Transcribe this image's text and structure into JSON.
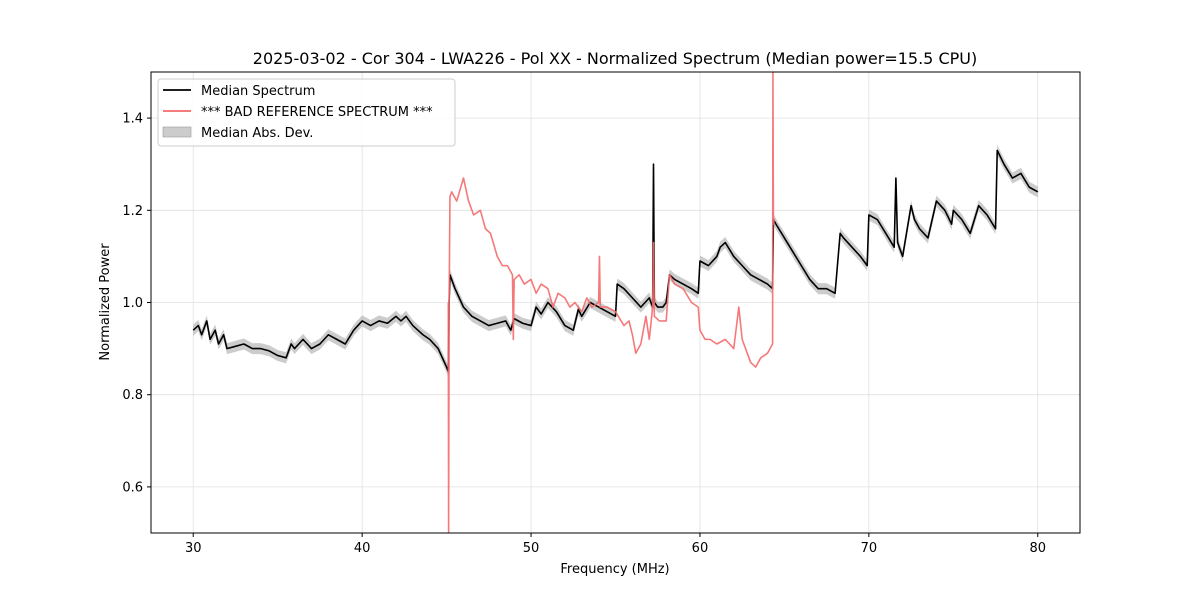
{
  "chart_data": {
    "type": "line",
    "title": "2025-03-02 - Cor 304 - LWA226 - Pol XX - Normalized Spectrum (Median power=15.5 CPU)",
    "xlabel": "Frequency (MHz)",
    "ylabel": "Normalized Power",
    "xlim": [
      27.5,
      82.5
    ],
    "ylim": [
      0.5,
      1.5
    ],
    "xticks": [
      30,
      40,
      50,
      60,
      70,
      80
    ],
    "xtick_labels": [
      "30",
      "40",
      "50",
      "60",
      "70",
      "80"
    ],
    "yticks": [
      0.6,
      0.8,
      1.0,
      1.2,
      1.4
    ],
    "ytick_labels": [
      "0.6",
      "0.8",
      "1.0",
      "1.2",
      "1.4"
    ],
    "grid": true,
    "legend_position": "top-left",
    "series": [
      {
        "name": "Median Spectrum",
        "color": "#000000",
        "x": [
          30.0,
          30.3,
          30.5,
          30.8,
          31.0,
          31.3,
          31.5,
          31.8,
          32.0,
          32.5,
          33.0,
          33.5,
          34.0,
          34.5,
          35.0,
          35.5,
          35.8,
          36.0,
          36.5,
          37.0,
          37.5,
          38.0,
          38.5,
          39.0,
          39.5,
          40.0,
          40.5,
          41.0,
          41.5,
          42.0,
          42.3,
          42.6,
          43.0,
          43.3,
          43.6,
          44.0,
          44.5,
          45.0,
          45.1,
          45.15,
          45.2,
          45.5,
          46.0,
          46.5,
          47.0,
          47.5,
          48.0,
          48.5,
          48.8,
          49.0,
          49.5,
          50.0,
          50.3,
          50.6,
          51.0,
          51.5,
          52.0,
          52.5,
          52.8,
          53.0,
          53.5,
          54.0,
          54.5,
          55.0,
          55.1,
          55.5,
          56.0,
          56.5,
          57.0,
          57.2,
          57.25,
          57.3,
          57.5,
          57.8,
          58.0,
          58.2,
          58.5,
          59.0,
          59.5,
          59.9,
          60.0,
          60.5,
          61.0,
          61.2,
          61.5,
          62.0,
          62.5,
          63.0,
          63.5,
          64.0,
          64.3,
          64.35,
          64.5,
          65.0,
          65.5,
          66.0,
          66.5,
          67.0,
          67.5,
          68.0,
          68.3,
          68.5,
          69.0,
          69.5,
          69.9,
          70.0,
          70.5,
          71.0,
          71.5,
          71.6,
          71.7,
          72.0,
          72.5,
          72.7,
          73.0,
          73.5,
          74.0,
          74.5,
          74.9,
          75.0,
          75.5,
          76.0,
          76.5,
          77.0,
          77.5,
          77.6,
          78.0,
          78.5,
          79.0,
          79.5,
          80.0
        ],
        "values": [
          0.94,
          0.95,
          0.93,
          0.96,
          0.92,
          0.94,
          0.91,
          0.93,
          0.9,
          0.905,
          0.91,
          0.9,
          0.9,
          0.895,
          0.885,
          0.88,
          0.91,
          0.9,
          0.92,
          0.9,
          0.91,
          0.93,
          0.92,
          0.91,
          0.94,
          0.96,
          0.95,
          0.96,
          0.955,
          0.97,
          0.96,
          0.97,
          0.95,
          0.94,
          0.93,
          0.92,
          0.9,
          0.86,
          0.85,
          1.0,
          1.06,
          1.03,
          0.99,
          0.97,
          0.96,
          0.95,
          0.955,
          0.96,
          0.94,
          0.965,
          0.955,
          0.95,
          0.99,
          0.975,
          1.0,
          0.98,
          0.95,
          0.94,
          0.985,
          0.97,
          1.0,
          0.99,
          0.98,
          0.97,
          1.04,
          1.03,
          1.01,
          0.99,
          1.01,
          0.99,
          1.3,
          1.0,
          0.99,
          0.99,
          1.0,
          1.06,
          1.05,
          1.04,
          1.03,
          1.02,
          1.09,
          1.08,
          1.1,
          1.12,
          1.13,
          1.1,
          1.08,
          1.06,
          1.05,
          1.04,
          1.03,
          1.18,
          1.17,
          1.14,
          1.11,
          1.08,
          1.05,
          1.03,
          1.03,
          1.02,
          1.15,
          1.14,
          1.12,
          1.1,
          1.08,
          1.19,
          1.18,
          1.15,
          1.12,
          1.27,
          1.13,
          1.1,
          1.21,
          1.18,
          1.16,
          1.14,
          1.22,
          1.2,
          1.17,
          1.2,
          1.18,
          1.15,
          1.21,
          1.19,
          1.16,
          1.33,
          1.3,
          1.27,
          1.28,
          1.25,
          1.24
        ]
      },
      {
        "name": "*** BAD REFERENCE SPECTRUM ***",
        "color": "#f46a6a",
        "x": [
          45.1,
          45.12,
          45.15,
          45.2,
          45.3,
          45.6,
          46.0,
          46.3,
          46.6,
          47.0,
          47.3,
          47.6,
          48.0,
          48.3,
          48.6,
          48.9,
          48.95,
          49.0,
          49.3,
          49.6,
          50.0,
          50.3,
          50.6,
          51.0,
          51.3,
          51.6,
          52.0,
          52.3,
          52.6,
          53.0,
          53.3,
          53.6,
          54.0,
          54.05,
          54.1,
          54.5,
          55.0,
          55.5,
          55.8,
          56.0,
          56.2,
          56.5,
          56.8,
          57.0,
          57.2,
          57.25,
          57.3,
          57.6,
          58.0,
          58.2,
          58.5,
          59.0,
          59.5,
          59.9,
          60.0,
          60.3,
          60.6,
          61.0,
          61.5,
          62.0,
          62.3,
          62.5,
          62.8,
          63.0,
          63.3,
          63.6,
          64.0,
          64.3,
          64.32,
          64.35,
          64.4
        ],
        "values": [
          1.0,
          0.5,
          1.0,
          1.23,
          1.24,
          1.22,
          1.27,
          1.22,
          1.19,
          1.2,
          1.16,
          1.15,
          1.1,
          1.08,
          1.08,
          1.06,
          0.92,
          1.05,
          1.06,
          1.04,
          1.05,
          1.02,
          1.04,
          1.03,
          0.99,
          1.02,
          1.01,
          0.99,
          1.0,
          0.98,
          1.01,
          0.99,
          1.0,
          1.1,
          0.99,
          0.99,
          0.98,
          0.95,
          0.96,
          0.93,
          0.89,
          0.91,
          0.97,
          0.92,
          0.99,
          1.13,
          0.97,
          0.96,
          0.96,
          1.06,
          1.04,
          1.03,
          1.0,
          0.99,
          0.94,
          0.92,
          0.92,
          0.91,
          0.92,
          0.9,
          0.99,
          0.92,
          0.89,
          0.87,
          0.86,
          0.88,
          0.89,
          0.91,
          1.5,
          1.17,
          1.18
        ]
      }
    ],
    "mad_band": {
      "name": "Median Abs. Dev.",
      "color": "#b0b0b0",
      "half_width": 0.012
    }
  }
}
